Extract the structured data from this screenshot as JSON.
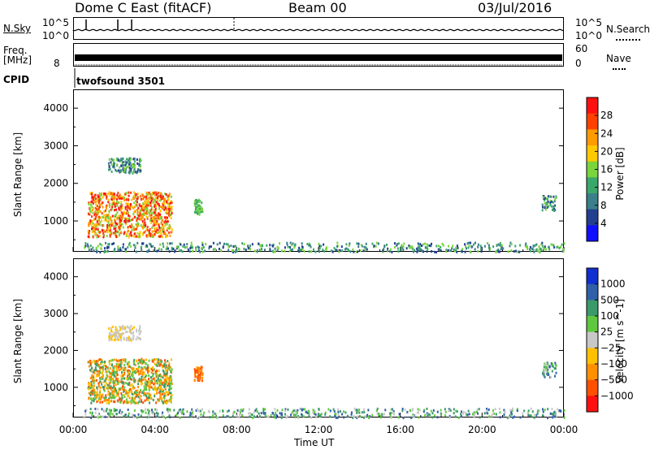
{
  "header": {
    "station": "Dome C East (fitACF)",
    "beam": "Beam 00",
    "date": "03/Jul/2016"
  },
  "top_panels": {
    "nsky_label": "N.Sky",
    "nsky_ticks": [
      "10^5",
      "10^0"
    ],
    "nsearch_label": "N.Search",
    "nsearch_ticks": [
      "10^5",
      "10^0"
    ],
    "freq_label": "Freq.",
    "freq_unit": "[MHz]",
    "freq_ticks": [
      "8"
    ],
    "nave_label": "Nave",
    "nave_ticks": [
      "60",
      "0"
    ],
    "cpid_label": "CPID",
    "cpid_value": "twofsound  3501"
  },
  "chart_data": [
    {
      "type": "heatmap",
      "name": "power-panel",
      "ylabel": "Slant Range [km]",
      "yticks": [
        1000,
        2000,
        3000,
        4000
      ],
      "ylim": [
        180,
        4500
      ],
      "colorbar_label": "Power [dB]",
      "colorbar_ticks": [
        "28",
        "24",
        "20",
        "16",
        "12",
        "8",
        "4"
      ],
      "colorbar_colors": [
        "#ff1010",
        "#ff4000",
        "#ff9a00",
        "#ffc800",
        "#7ad43c",
        "#3aa86b",
        "#3a7f8a",
        "#23408f",
        "#1010ff"
      ]
    },
    {
      "type": "heatmap",
      "name": "velocity-panel",
      "ylabel": "Slant Range [km]",
      "yticks": [
        1000,
        2000,
        3000,
        4000
      ],
      "ylim": [
        180,
        4500
      ],
      "xlabel": "Time UT",
      "xticks": [
        "00:00",
        "04:00",
        "08:00",
        "12:00",
        "16:00",
        "20:00",
        "00:00"
      ],
      "colorbar_label": "Velocity [m s^-1]",
      "colorbar_ticks": [
        "1000",
        "500",
        "100",
        "25",
        "−25",
        "−100",
        "−500",
        "−1000"
      ],
      "colorbar_colors": [
        "#1030d0",
        "#2f60a8",
        "#3a9a6a",
        "#60c840",
        "#c8c8c8",
        "#ffc000",
        "#ff9000",
        "#ff5000",
        "#ff1010"
      ]
    }
  ]
}
